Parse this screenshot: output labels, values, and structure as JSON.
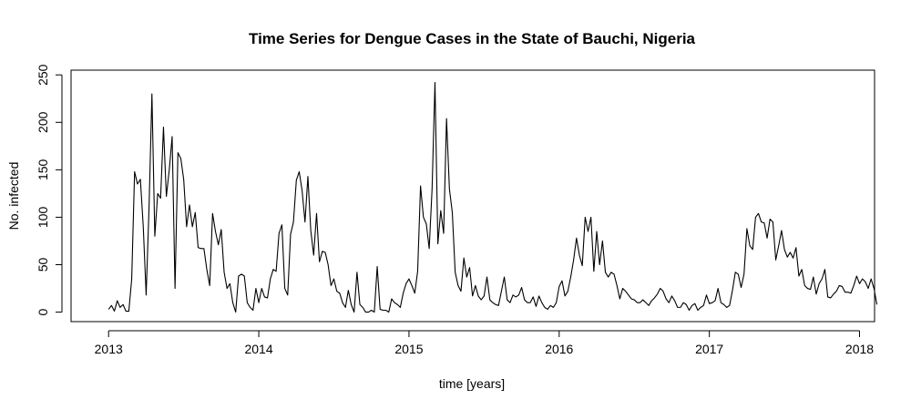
{
  "chart_data": {
    "type": "line",
    "title": "Time Series for Dengue Cases in the State of Bauchi, Nigeria",
    "xlabel": "time [years]",
    "ylabel": "No. infected",
    "xlim": [
      2012.75,
      2018.1
    ],
    "ylim": [
      -10,
      255
    ],
    "xticks": [
      2013,
      2014,
      2015,
      2016,
      2017,
      2018
    ],
    "yticks": [
      0,
      50,
      100,
      150,
      200,
      250
    ],
    "grid": false,
    "line_color": "#000000",
    "series": [
      {
        "start": 2013.0,
        "step_weeks": 1,
        "values": [
          3,
          7,
          1,
          12,
          5,
          8,
          1,
          1,
          35,
          148,
          135,
          140,
          90,
          18,
          110,
          230,
          80,
          125,
          120,
          195,
          122,
          150,
          185,
          25,
          168,
          162,
          140,
          90,
          113,
          90,
          105,
          68,
          67,
          67,
          45,
          28,
          104,
          85,
          71,
          87,
          42,
          25,
          30,
          10,
          0,
          38,
          40,
          38,
          10,
          5,
          2,
          25,
          10,
          25,
          16,
          15,
          35,
          45,
          43,
          83,
          92,
          25,
          18,
          82,
          95,
          139,
          148,
          128,
          95,
          143,
          86,
          60,
          104,
          53,
          64,
          63,
          50,
          28,
          35,
          22,
          20,
          10,
          5,
          23,
          8,
          0,
          42,
          8,
          5,
          0,
          0,
          2,
          0,
          48,
          3,
          2,
          2,
          0,
          14,
          10,
          8,
          5,
          20,
          30,
          35,
          28,
          20,
          43,
          133,
          100,
          93,
          67,
          130,
          242,
          72,
          107,
          83,
          204,
          130,
          105,
          42,
          28,
          22,
          57,
          37,
          47,
          17,
          28,
          17,
          13,
          17,
          37,
          13,
          10,
          8,
          7,
          22,
          37,
          13,
          10,
          18,
          16,
          18,
          26,
          13,
          10,
          10,
          16,
          6,
          17,
          10,
          5,
          3,
          7,
          5,
          10,
          27,
          33,
          17,
          22,
          37,
          55,
          78,
          60,
          49,
          100,
          85,
          100,
          43,
          85,
          50,
          75,
          42,
          37,
          42,
          40,
          28,
          14,
          25,
          22,
          18,
          14,
          13,
          10,
          10,
          13,
          10,
          7,
          12,
          15,
          19,
          25,
          22,
          14,
          10,
          17,
          12,
          5,
          5,
          10,
          8,
          2,
          7,
          9,
          2,
          5,
          7,
          18,
          9,
          10,
          12,
          25,
          10,
          8,
          5,
          7,
          23,
          42,
          40,
          26,
          40,
          88,
          70,
          66,
          100,
          104,
          95,
          94,
          78,
          98,
          95,
          55,
          70,
          86,
          66,
          58,
          63,
          57,
          68,
          38,
          45,
          28,
          25,
          24,
          37,
          19,
          30,
          35,
          45,
          16,
          15,
          19,
          22,
          28,
          27,
          21,
          21,
          20,
          28,
          38,
          30,
          35,
          32,
          25,
          35,
          25,
          8
        ]
      }
    ]
  }
}
